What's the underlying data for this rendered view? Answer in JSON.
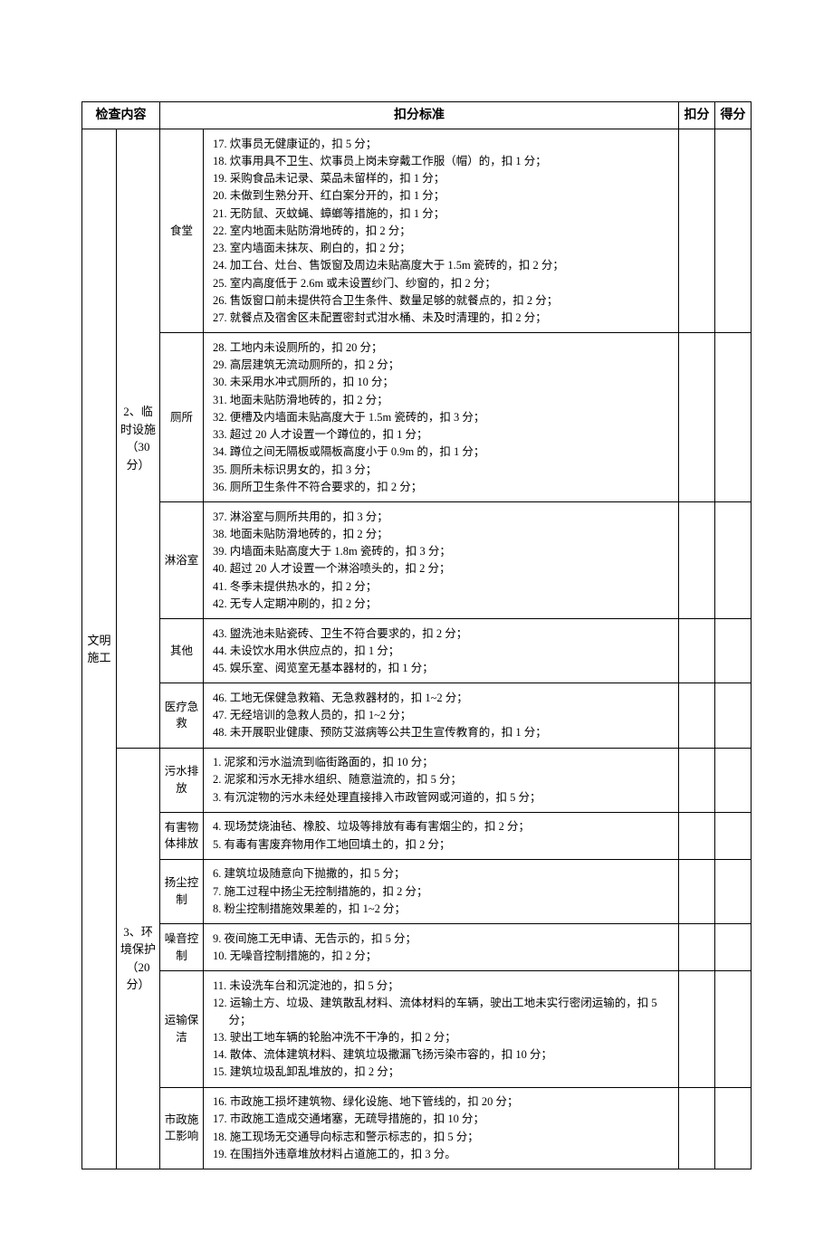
{
  "header": {
    "col1": "检查内容",
    "col2": "扣分标准",
    "col3": "扣分",
    "col4": "得分"
  },
  "main": {
    "label": "文明施工"
  },
  "sec2": {
    "label": "2、临时设施（30分）",
    "rows": [
      {
        "label": "食堂",
        "items": [
          "17. 炊事员无健康证的，扣 5 分；",
          "18. 炊事用具不卫生、炊事员上岗未穿戴工作服（帽）的，扣 1 分；",
          "19. 采购食品未记录、菜品未留样的，扣 1 分；",
          "20. 未做到生熟分开、红白案分开的，扣 1 分；",
          "21. 无防鼠、灭蚊蝇、蟑螂等措施的，扣 1 分；",
          "22. 室内地面未贴防滑地砖的，扣 2 分；",
          "23. 室内墙面未抹灰、刷白的，扣 2 分；",
          "24. 加工台、灶台、售饭窗及周边未贴高度大于 1.5m 瓷砖的，扣 2 分；",
          "25. 室内高度低于 2.6m 或未设置纱门、纱窗的，扣 2 分；",
          "26. 售饭窗口前未提供符合卫生条件、数量足够的就餐点的，扣 2 分；",
          "27. 就餐点及宿舍区未配置密封式泔水桶、未及时清理的，扣 2 分；"
        ]
      },
      {
        "label": "厕所",
        "items": [
          "28. 工地内未设厕所的，扣 20 分；",
          "29. 高层建筑无流动厕所的，扣 2 分；",
          "30. 未采用水冲式厕所的，扣 10 分；",
          "31. 地面未贴防滑地砖的，扣 2 分；",
          "32. 便槽及内墙面未贴高度大于 1.5m 瓷砖的，扣 3 分；",
          "33. 超过 20 人才设置一个蹲位的，扣 1 分；",
          "34. 蹲位之间无隔板或隔板高度小于 0.9m 的，扣 1 分；",
          "35. 厕所未标识男女的，扣 3 分；",
          "36. 厕所卫生条件不符合要求的，扣 2 分；"
        ]
      },
      {
        "label": "淋浴室",
        "items": [
          "37. 淋浴室与厕所共用的，扣 3 分；",
          "38. 地面未贴防滑地砖的，扣 2 分；",
          "39. 内墙面未贴高度大于 1.8m 瓷砖的，扣 3 分；",
          "40. 超过 20 人才设置一个淋浴喷头的，扣 2 分；",
          "41. 冬季未提供热水的，扣 2 分；",
          "42. 无专人定期冲刷的，扣 2 分；"
        ]
      },
      {
        "label": "其他",
        "items": [
          "43. 盥洗池未贴瓷砖、卫生不符合要求的，扣 2 分；",
          "44. 未设饮水用水供应点的，扣 1 分；",
          "45. 娱乐室、阅览室无基本器材的，扣 1 分；"
        ]
      },
      {
        "label": "医疗急救",
        "items": [
          "46. 工地无保健急救箱、无急救器材的，扣 1~2 分；",
          "47. 无经培训的急救人员的，扣 1~2 分；",
          "48. 未开展职业健康、预防艾滋病等公共卫生宣传教育的，扣 1 分；"
        ]
      }
    ]
  },
  "sec3": {
    "label": "3、环境保护（20分）",
    "rows": [
      {
        "label": "污水排放",
        "items": [
          "1. 泥浆和污水溢流到临街路面的，扣 10 分；",
          "2. 泥浆和污水无排水组织、随意溢流的，扣 5 分；",
          "3. 有沉淀物的污水未经处理直接排入市政管网或河道的，扣 5 分；"
        ]
      },
      {
        "label": "有害物体排放",
        "items": [
          "4. 现场焚烧油毡、橡胶、垃圾等排放有毒有害烟尘的，扣 2 分；",
          "5. 有毒有害废弃物用作工地回填土的，扣 2 分；"
        ]
      },
      {
        "label": "扬尘控制",
        "items": [
          "6. 建筑垃圾随意向下抛撒的，扣 5 分；",
          "7. 施工过程中扬尘无控制措施的，扣 2 分；",
          "8. 粉尘控制措施效果差的，扣 1~2 分；"
        ]
      },
      {
        "label": "噪音控制",
        "items": [
          "9. 夜间施工无申请、无告示的，扣 5 分；",
          "10. 无噪音控制措施的，扣 2 分；"
        ]
      },
      {
        "label": "运输保洁",
        "items": [
          "11. 未设洗车台和沉淀池的，扣 5 分；",
          "12. 运输土方、垃圾、建筑散乱材料、流体材料的车辆，驶出工地未实行密闭运输的，扣 5 分；",
          "13. 驶出工地车辆的轮胎冲洗不干净的，扣 2 分；",
          "14. 散体、流体建筑材料、建筑垃圾撒漏飞扬污染市容的，扣 10 分；",
          "15. 建筑垃圾乱卸乱堆放的，扣 2 分；"
        ]
      },
      {
        "label": "市政施工影响",
        "items": [
          "16. 市政施工损坏建筑物、绿化设施、地下管线的，扣 20 分；",
          "17. 市政施工造成交通堵塞，无疏导措施的，扣 10 分；",
          "18. 施工现场无交通导向标志和警示标志的，扣 5 分；",
          "19. 在围挡外违章堆放材料占道施工的，扣 3 分。"
        ]
      }
    ]
  }
}
